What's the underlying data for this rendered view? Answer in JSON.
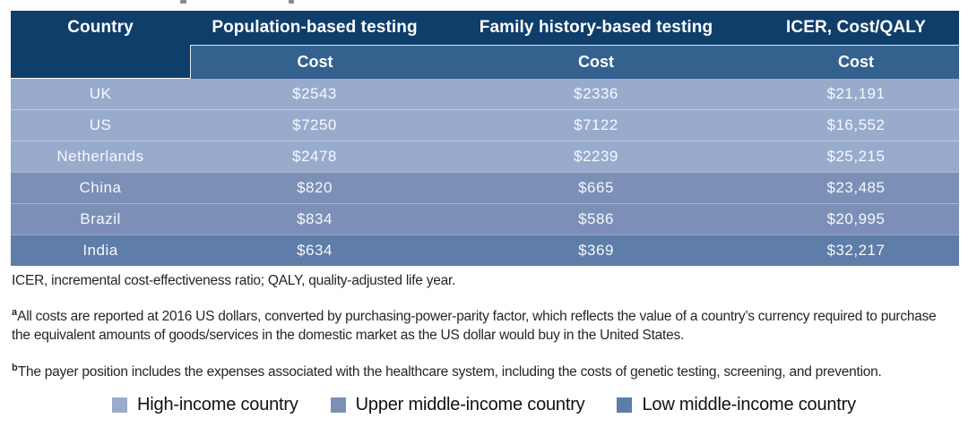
{
  "page": {
    "background": "#ffffff"
  },
  "table": {
    "colors": {
      "header_bg": "#103e6b",
      "subheader_bg": "#35618f",
      "high_income_row": "#99abcd",
      "upper_middle_row": "#7b8fb7",
      "low_middle_row": "#5e7da8"
    },
    "headers": {
      "country": "Country",
      "population": "Population-based testing",
      "family": "Family history-based testing",
      "icer": "ICER, Cost/QALY"
    },
    "subheader_cost_label": "Cost",
    "rows": [
      {
        "country": "UK",
        "population_cost": "$2543",
        "family_cost": "$2336",
        "icer_cost": "$21,191",
        "income_level": "high-income",
        "color": "#99abcd"
      },
      {
        "country": "US",
        "population_cost": "$7250",
        "family_cost": "$7122",
        "icer_cost": "$16,552",
        "income_level": "high-income",
        "color": "#99abcd"
      },
      {
        "country": "Netherlands",
        "population_cost": "$2478",
        "family_cost": "$2239",
        "icer_cost": "$25,215",
        "income_level": "high-income",
        "color": "#99abcd"
      },
      {
        "country": "China",
        "population_cost": "$820",
        "family_cost": "$665",
        "icer_cost": "$23,485",
        "income_level": "upper-middle-income",
        "color": "#7b8fb7"
      },
      {
        "country": "Brazil",
        "population_cost": "$834",
        "family_cost": "$586",
        "icer_cost": "$20,995",
        "income_level": "upper-middle-income",
        "color": "#7b8fb7"
      },
      {
        "country": "India",
        "population_cost": "$634",
        "family_cost": "$369",
        "icer_cost": "$32,217",
        "income_level": "low-middle-income",
        "color": "#5e7da8"
      }
    ]
  },
  "footnotes": {
    "abbreviations": "ICER, incremental cost-effectiveness ratio; QALY, quality-adjusted life year.",
    "a_sup": "a",
    "a_text": "All costs are reported at 2016 US dollars, converted by purchasing-power-parity factor, which reflects the value of a country’s currency required to purchase the equivalent amounts of goods/services in the domestic market as the US dollar would buy in the United States.",
    "b_sup": "b",
    "b_text": "The payer position includes the expenses associated with the healthcare system, including the costs of genetic testing, screening, and prevention."
  },
  "legend": {
    "items": [
      {
        "label": "High-income country",
        "color": "#99abcd"
      },
      {
        "label": "Upper middle-income country",
        "color": "#7b8fb7"
      },
      {
        "label": "Low middle-income country",
        "color": "#5e7da8"
      }
    ]
  }
}
